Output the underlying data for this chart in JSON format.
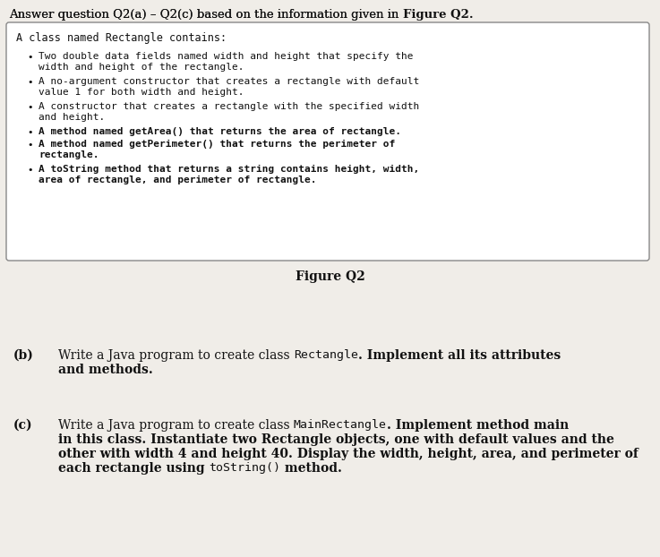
{
  "bg_color": "#f0ede8",
  "white": "#ffffff",
  "black": "#111111",
  "gray_border": "#888888",
  "header_normal": "Answer question Q2(a) – Q2(c) based on the information given in ",
  "header_bold": "Figure Q2.",
  "box_title": "A class named Rectangle contains:",
  "bullets": [
    {
      "text": "Two double data fields named width and height that specify the\nwidth and height of the rectangle.",
      "bold": false
    },
    {
      "text": "A no-argument constructor that creates a rectangle with default\nvalue 1 for both width and height.",
      "bold": false
    },
    {
      "text": "A constructor that creates a rectangle with the specified width\nand height.",
      "bold": false
    },
    {
      "text": "A method named getArea() that returns the area of rectangle.",
      "bold": true
    },
    {
      "text": "A method named getPerimeter() that returns the perimeter of\nrectangle.",
      "bold": true
    },
    {
      "text": "A toString method that returns a string contains height, width,\narea of rectangle, and perimeter of rectangle.",
      "bold": true
    }
  ],
  "figure_label": "Figure Q2",
  "b_label": "(b)",
  "b_pre": "Write a Java program to create class ",
  "b_code": "Rectangle",
  "b_post": ". Implement all its attributes",
  "b_line2": "and methods.",
  "c_label": "(c)",
  "c_pre": "Write a Java program to create class ",
  "c_code": "MainRectangle",
  "c_post": ". Implement method main",
  "c_line2": "in this class. Instantiate two Rectangle objects, one with default values and the",
  "c_line3": "other with width 4 and height 40. Display the width, height, area, and perimeter of",
  "c_line4_pre": "each rectangle using ",
  "c_line4_code": "toString()",
  "c_line4_post": " method."
}
